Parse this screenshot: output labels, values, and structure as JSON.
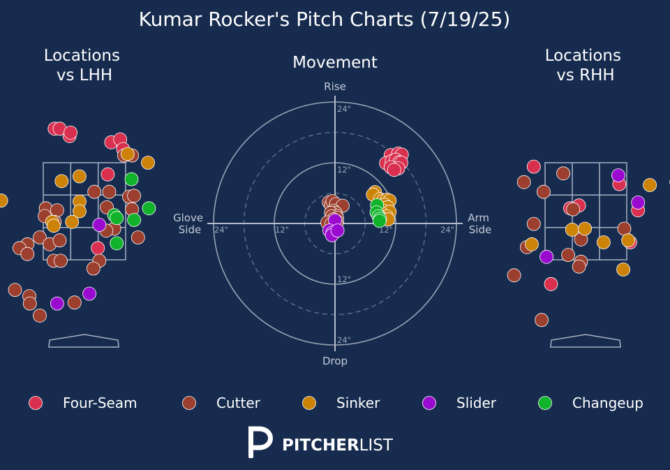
{
  "title": "Kumar Rocker's Pitch Charts (7/19/25)",
  "brand": {
    "bold": "PITCHER",
    "light": "LIST"
  },
  "colors": {
    "Four-Seam": "#d9304f",
    "Cutter": "#9c3f2e",
    "Sinker": "#cc8308",
    "Slider": "#9a0bcf",
    "Changeup": "#10b32a"
  },
  "chart_data": [
    {
      "type": "scatter",
      "title": "Locations\nvs LHH",
      "note": "x = horizontal location (ft, catcher view), z = height (ft)",
      "xlim": [
        -2.2,
        2.2
      ],
      "zlim": [
        0.0,
        5.9
      ],
      "points": [
        {
          "pitch": "Four-Seam",
          "x": -0.6,
          "z": 4.2
        },
        {
          "pitch": "Four-Seam",
          "x": -0.5,
          "z": 4.2
        },
        {
          "pitch": "Four-Seam",
          "x": -0.3,
          "z": 4.05
        },
        {
          "pitch": "Four-Seam",
          "x": -0.28,
          "z": 4.12
        },
        {
          "pitch": "Four-Seam",
          "x": 0.54,
          "z": 3.92
        },
        {
          "pitch": "Four-Seam",
          "x": 0.72,
          "z": 3.98
        },
        {
          "pitch": "Four-Seam",
          "x": 0.78,
          "z": 3.78
        },
        {
          "pitch": "Four-Seam",
          "x": 0.47,
          "z": 3.26
        },
        {
          "pitch": "Four-Seam",
          "x": 0.27,
          "z": 1.74
        },
        {
          "pitch": "Cutter",
          "x": 0.96,
          "z": 3.65
        },
        {
          "pitch": "Cutter",
          "x": 0.8,
          "z": 3.65
        },
        {
          "pitch": "Cutter",
          "x": 0.2,
          "z": 2.9
        },
        {
          "pitch": "Cutter",
          "x": 0.5,
          "z": 2.9
        },
        {
          "pitch": "Cutter",
          "x": 0.9,
          "z": 2.8
        },
        {
          "pitch": "Cutter",
          "x": 1.0,
          "z": 2.82
        },
        {
          "pitch": "Cutter",
          "x": 0.45,
          "z": 2.58
        },
        {
          "pitch": "Cutter",
          "x": 0.96,
          "z": 2.54
        },
        {
          "pitch": "Cutter",
          "x": -0.78,
          "z": 2.56
        },
        {
          "pitch": "Cutter",
          "x": -0.55,
          "z": 2.52
        },
        {
          "pitch": "Cutter",
          "x": -0.8,
          "z": 2.4
        },
        {
          "pitch": "Cutter",
          "x": -0.6,
          "z": 2.28
        },
        {
          "pitch": "Cutter",
          "x": 0.6,
          "z": 2.14
        },
        {
          "pitch": "Cutter",
          "x": 0.44,
          "z": 2.1
        },
        {
          "pitch": "Cutter",
          "x": -0.9,
          "z": 1.96
        },
        {
          "pitch": "Cutter",
          "x": -1.15,
          "z": 1.82
        },
        {
          "pitch": "Cutter",
          "x": -1.31,
          "z": 1.74
        },
        {
          "pitch": "Cutter",
          "x": -1.15,
          "z": 1.62
        },
        {
          "pitch": "Cutter",
          "x": -0.7,
          "z": 1.82
        },
        {
          "pitch": "Cutter",
          "x": -0.5,
          "z": 1.9
        },
        {
          "pitch": "Cutter",
          "x": -0.62,
          "z": 1.48
        },
        {
          "pitch": "Cutter",
          "x": -0.48,
          "z": 1.48
        },
        {
          "pitch": "Cutter",
          "x": 0.3,
          "z": 1.48
        },
        {
          "pitch": "Cutter",
          "x": 0.18,
          "z": 1.32
        },
        {
          "pitch": "Cutter",
          "x": 1.08,
          "z": 1.96
        },
        {
          "pitch": "Cutter",
          "x": -2.1,
          "z": 1.03
        },
        {
          "pitch": "Cutter",
          "x": -1.4,
          "z": 0.88
        },
        {
          "pitch": "Cutter",
          "x": -1.11,
          "z": 0.75
        },
        {
          "pitch": "Cutter",
          "x": -1.1,
          "z": 0.6
        },
        {
          "pitch": "Cutter",
          "x": -0.2,
          "z": 0.62
        },
        {
          "pitch": "Cutter",
          "x": -0.9,
          "z": 0.35
        },
        {
          "pitch": "Cutter",
          "x": -2.1,
          "z": 0.08
        },
        {
          "pitch": "Sinker",
          "x": 0.87,
          "z": 3.68
        },
        {
          "pitch": "Sinker",
          "x": 1.28,
          "z": 3.5
        },
        {
          "pitch": "Sinker",
          "x": -0.1,
          "z": 3.22
        },
        {
          "pitch": "Sinker",
          "x": -0.46,
          "z": 3.12
        },
        {
          "pitch": "Sinker",
          "x": -1.68,
          "z": 2.72
        },
        {
          "pitch": "Sinker",
          "x": -0.1,
          "z": 2.7
        },
        {
          "pitch": "Sinker",
          "x": -0.1,
          "z": 2.5
        },
        {
          "pitch": "Sinker",
          "x": -0.65,
          "z": 2.28
        },
        {
          "pitch": "Sinker",
          "x": -0.62,
          "z": 2.2
        },
        {
          "pitch": "Sinker",
          "x": -0.25,
          "z": 2.28
        },
        {
          "pitch": "Slider",
          "x": 0.3,
          "z": 2.22
        },
        {
          "pitch": "Slider",
          "x": 0.1,
          "z": 0.8
        },
        {
          "pitch": "Slider",
          "x": -0.55,
          "z": 0.6
        },
        {
          "pitch": "Changeup",
          "x": 0.95,
          "z": 3.16
        },
        {
          "pitch": "Changeup",
          "x": 1.3,
          "z": 2.56
        },
        {
          "pitch": "Changeup",
          "x": 0.6,
          "z": 2.42
        },
        {
          "pitch": "Changeup",
          "x": 0.65,
          "z": 2.36
        },
        {
          "pitch": "Changeup",
          "x": 1.0,
          "z": 2.32
        },
        {
          "pitch": "Changeup",
          "x": 0.65,
          "z": 1.84
        }
      ]
    },
    {
      "type": "scatter",
      "title": "Movement",
      "note": "polar movement plot, inches; x = horizontal break (+ arm side), y = induced vertical break (+ rise)",
      "labels": {
        "top": "Rise",
        "bottom": "Drop",
        "left": "Glove\nSide",
        "right": "Arm\nSide"
      },
      "rings": [
        {
          "r": 12,
          "label": "12\"",
          "style": "solid"
        },
        {
          "r": 24,
          "label": "24\"",
          "style": "solid"
        },
        {
          "r": 6,
          "style": "dashed"
        },
        {
          "r": 18,
          "style": "dashed"
        }
      ],
      "points": [
        {
          "pitch": "Four-Seam",
          "x": 11.0,
          "y": 13.5
        },
        {
          "pitch": "Four-Seam",
          "x": 12.5,
          "y": 13.8
        },
        {
          "pitch": "Four-Seam",
          "x": 13.2,
          "y": 13.6
        },
        {
          "pitch": "Four-Seam",
          "x": 10.1,
          "y": 11.9
        },
        {
          "pitch": "Four-Seam",
          "x": 11.2,
          "y": 12.3
        },
        {
          "pitch": "Four-Seam",
          "x": 12.0,
          "y": 12.6
        },
        {
          "pitch": "Four-Seam",
          "x": 12.7,
          "y": 12.1
        },
        {
          "pitch": "Four-Seam",
          "x": 13.1,
          "y": 12.0
        },
        {
          "pitch": "Four-Seam",
          "x": 11.0,
          "y": 11.1
        },
        {
          "pitch": "Four-Seam",
          "x": 12.5,
          "y": 10.9
        },
        {
          "pitch": "Four-Seam",
          "x": 11.7,
          "y": 10.6
        },
        {
          "pitch": "Cutter",
          "x": -1.2,
          "y": 4.2
        },
        {
          "pitch": "Cutter",
          "x": -0.8,
          "y": 3.6
        },
        {
          "pitch": "Cutter",
          "x": -0.5,
          "y": 4.4
        },
        {
          "pitch": "Cutter",
          "x": 0.2,
          "y": 3.8
        },
        {
          "pitch": "Cutter",
          "x": 1.5,
          "y": 3.5
        },
        {
          "pitch": "Cutter",
          "x": -0.3,
          "y": 2.5
        },
        {
          "pitch": "Cutter",
          "x": 0.1,
          "y": 2.1
        },
        {
          "pitch": "Cutter",
          "x": -0.8,
          "y": 2.1
        },
        {
          "pitch": "Cutter",
          "x": 0.3,
          "y": 1.5
        },
        {
          "pitch": "Cutter",
          "x": -0.6,
          "y": 1.4
        },
        {
          "pitch": "Cutter",
          "x": 0.4,
          "y": 1.1
        },
        {
          "pitch": "Cutter",
          "x": -0.3,
          "y": 0.8
        },
        {
          "pitch": "Cutter",
          "x": 0.4,
          "y": 0.4
        },
        {
          "pitch": "Cutter",
          "x": -1.5,
          "y": 0.2
        },
        {
          "pitch": "Cutter",
          "x": 0.3,
          "y": -0.1
        },
        {
          "pitch": "Cutter",
          "x": -0.7,
          "y": -0.1
        },
        {
          "pitch": "Sinker",
          "x": 7.9,
          "y": 6.2
        },
        {
          "pitch": "Sinker",
          "x": 7.5,
          "y": 5.7
        },
        {
          "pitch": "Sinker",
          "x": 8.9,
          "y": 4.8
        },
        {
          "pitch": "Sinker",
          "x": 9.5,
          "y": 4.5
        },
        {
          "pitch": "Sinker",
          "x": 10.3,
          "y": 4.7
        },
        {
          "pitch": "Sinker",
          "x": 10.8,
          "y": 4.5
        },
        {
          "pitch": "Sinker",
          "x": 9.8,
          "y": 3.7
        },
        {
          "pitch": "Sinker",
          "x": 10.4,
          "y": 3.2
        },
        {
          "pitch": "Sinker",
          "x": 9.5,
          "y": 2.5
        },
        {
          "pitch": "Sinker",
          "x": 10.8,
          "y": 2.3
        },
        {
          "pitch": "Sinker",
          "x": 9.2,
          "y": 2.0
        },
        {
          "pitch": "Sinker",
          "x": 10.2,
          "y": 1.4
        },
        {
          "pitch": "Sinker",
          "x": 9.0,
          "y": 1.3
        },
        {
          "pitch": "Sinker",
          "x": 10.5,
          "y": 0.8
        },
        {
          "pitch": "Slider",
          "x": 0.0,
          "y": 0.6
        },
        {
          "pitch": "Slider",
          "x": -1.1,
          "y": -1.4
        },
        {
          "pitch": "Slider",
          "x": -0.5,
          "y": -1.8
        },
        {
          "pitch": "Slider",
          "x": -0.6,
          "y": -2.3
        },
        {
          "pitch": "Slider",
          "x": 0.5,
          "y": -1.4
        },
        {
          "pitch": "Changeup",
          "x": 8.3,
          "y": 3.6
        },
        {
          "pitch": "Changeup",
          "x": 8.2,
          "y": 2.2
        },
        {
          "pitch": "Changeup",
          "x": 8.6,
          "y": 1.4
        },
        {
          "pitch": "Changeup",
          "x": 8.9,
          "y": 0.9
        },
        {
          "pitch": "Changeup",
          "x": 8.8,
          "y": 0.5
        }
      ]
    },
    {
      "type": "scatter",
      "title": "Locations\nvs RHH",
      "note": "x = horizontal location (ft, catcher view), z = height (ft)",
      "xlim": [
        -2.2,
        2.2
      ],
      "zlim": [
        0.0,
        5.9
      ],
      "points": [
        {
          "pitch": "Four-Seam",
          "x": -1.06,
          "z": 3.42
        },
        {
          "pitch": "Four-Seam",
          "x": 0.68,
          "z": 3.06
        },
        {
          "pitch": "Four-Seam",
          "x": 1.84,
          "z": 3.1
        },
        {
          "pitch": "Four-Seam",
          "x": -0.32,
          "z": 2.56
        },
        {
          "pitch": "Four-Seam",
          "x": -0.14,
          "z": 2.62
        },
        {
          "pitch": "Four-Seam",
          "x": 1.06,
          "z": 2.52
        },
        {
          "pitch": "Four-Seam",
          "x": 0.9,
          "z": 1.86
        },
        {
          "pitch": "Four-Seam",
          "x": -0.71,
          "z": 1.0
        },
        {
          "pitch": "Cutter",
          "x": -1.26,
          "z": 3.1
        },
        {
          "pitch": "Cutter",
          "x": -0.46,
          "z": 3.28
        },
        {
          "pitch": "Cutter",
          "x": -0.86,
          "z": 2.9
        },
        {
          "pitch": "Cutter",
          "x": -0.26,
          "z": 2.54
        },
        {
          "pitch": "Cutter",
          "x": -1.06,
          "z": 2.24
        },
        {
          "pitch": "Cutter",
          "x": 0.78,
          "z": 2.14
        },
        {
          "pitch": "Cutter",
          "x": -0.1,
          "z": 1.92
        },
        {
          "pitch": "Cutter",
          "x": -1.2,
          "z": 1.76
        },
        {
          "pitch": "Cutter",
          "x": -0.1,
          "z": 1.46
        },
        {
          "pitch": "Cutter",
          "x": -0.14,
          "z": 1.36
        },
        {
          "pitch": "Cutter",
          "x": -0.36,
          "z": 1.6
        },
        {
          "pitch": "Cutter",
          "x": -1.46,
          "z": 1.18
        },
        {
          "pitch": "Cutter",
          "x": -0.9,
          "z": 0.26
        },
        {
          "pitch": "Sinker",
          "x": 1.3,
          "z": 3.04
        },
        {
          "pitch": "Sinker",
          "x": 2.2,
          "z": 2.96
        },
        {
          "pitch": "Sinker",
          "x": -0.28,
          "z": 2.12
        },
        {
          "pitch": "Sinker",
          "x": -0.02,
          "z": 2.14
        },
        {
          "pitch": "Sinker",
          "x": 0.36,
          "z": 1.86
        },
        {
          "pitch": "Sinker",
          "x": 0.86,
          "z": 1.9
        },
        {
          "pitch": "Sinker",
          "x": -1.1,
          "z": 1.82
        },
        {
          "pitch": "Sinker",
          "x": 0.76,
          "z": 1.3
        },
        {
          "pitch": "Slider",
          "x": 0.66,
          "z": 3.24
        },
        {
          "pitch": "Slider",
          "x": 1.06,
          "z": 2.68
        },
        {
          "pitch": "Slider",
          "x": -0.8,
          "z": 1.56
        }
      ]
    }
  ],
  "legend": {
    "placement": "bottom",
    "items": [
      {
        "label": "Four-Seam"
      },
      {
        "label": "Cutter"
      },
      {
        "label": "Sinker"
      },
      {
        "label": "Slider"
      },
      {
        "label": "Changeup"
      }
    ]
  }
}
